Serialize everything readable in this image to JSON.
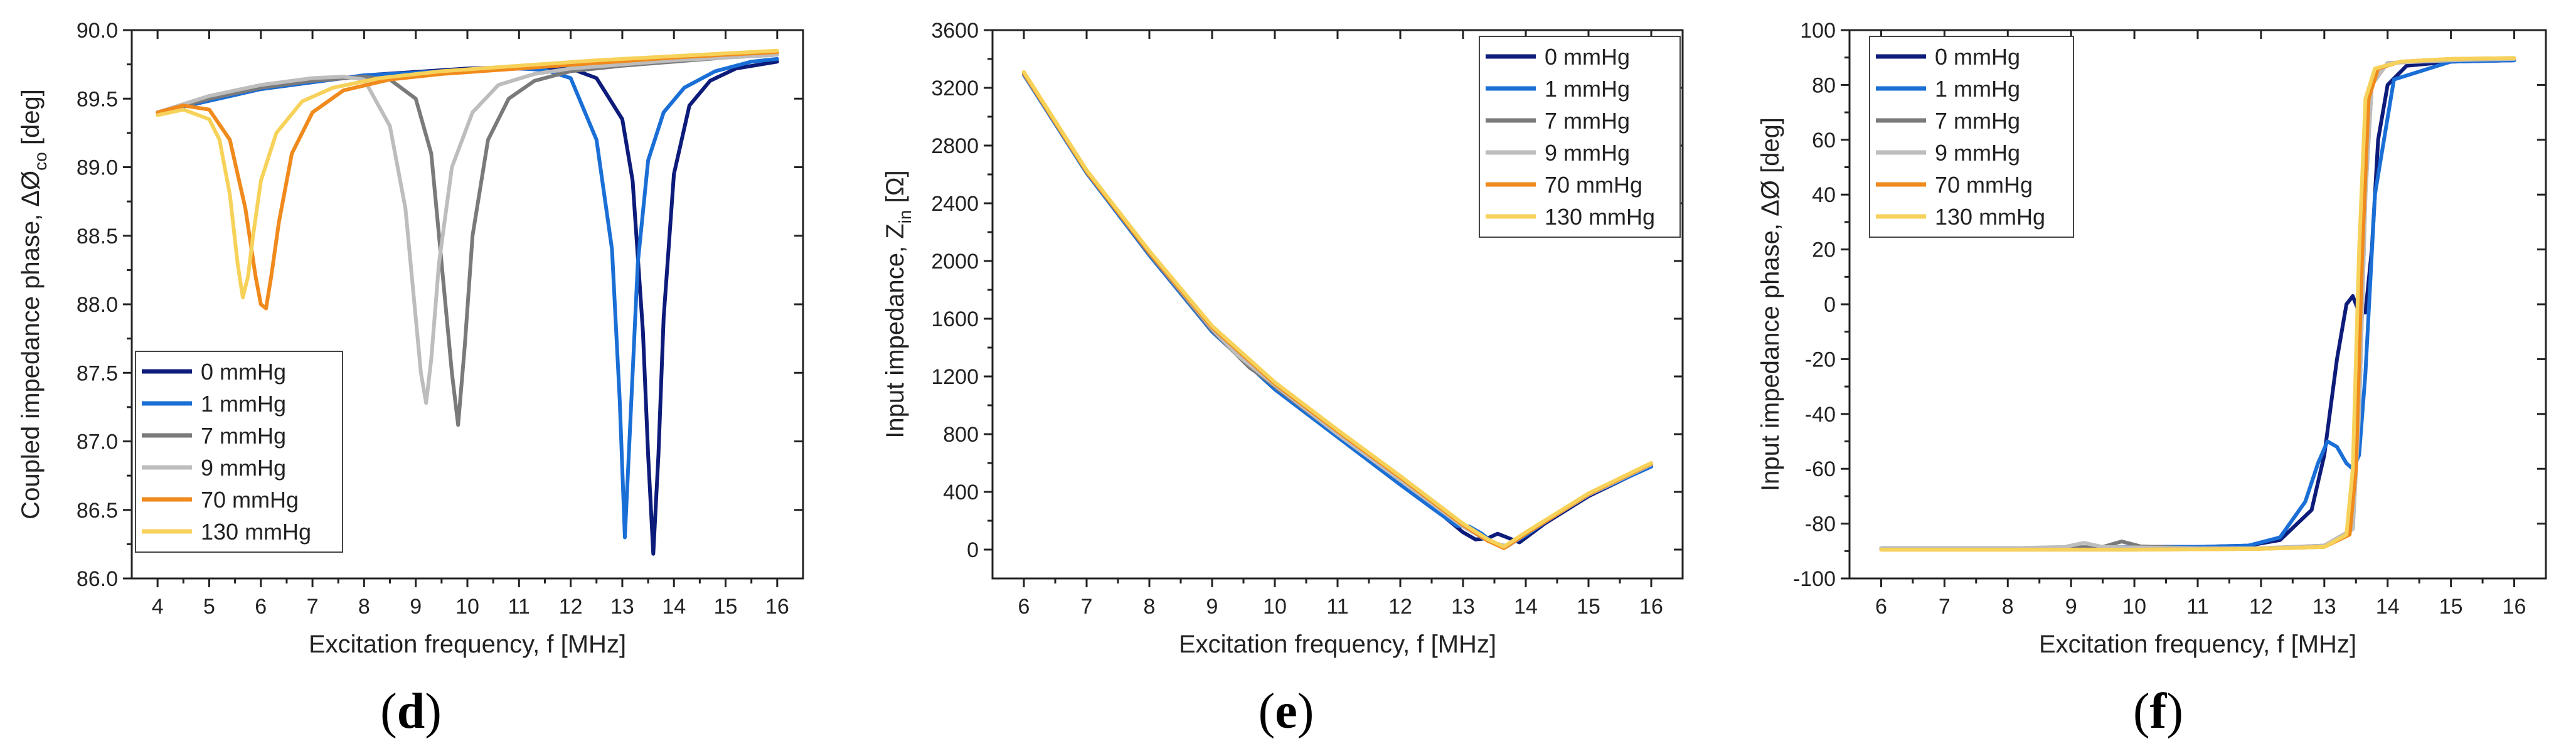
{
  "chart_data": [
    {
      "id": "d",
      "type": "line",
      "panel_label": "d",
      "xlabel": "Excitation frequency, f [MHz]",
      "ylabel": "Coupled impedance phase, ΔØ",
      "ylabel_sub": "co",
      "ylabel_unit": " [deg]",
      "xlim": [
        3.5,
        16.5
      ],
      "ylim": [
        86.0,
        90.0
      ],
      "xticks": [
        4,
        5,
        6,
        7,
        8,
        9,
        10,
        11,
        12,
        13,
        14,
        15,
        16
      ],
      "yticks": [
        86.0,
        86.5,
        87.0,
        87.5,
        88.0,
        88.5,
        89.0,
        89.5,
        90.0
      ],
      "ytick_labels": [
        "86.0",
        "86.5",
        "87.0",
        "87.5",
        "88.0",
        "88.5",
        "89.0",
        "89.5",
        "90.0"
      ],
      "legend_position": "bottom-left",
      "series": [
        {
          "name": "0 mmHg",
          "color": "#0d1b7a",
          "x": [
            4,
            6,
            8,
            10,
            11,
            12,
            12.5,
            13,
            13.2,
            13.4,
            13.5,
            13.6,
            13.7,
            13.8,
            14,
            14.3,
            14.7,
            15.2,
            16
          ],
          "y": [
            89.4,
            89.57,
            89.67,
            89.72,
            89.73,
            89.72,
            89.65,
            89.35,
            88.9,
            87.8,
            86.9,
            86.18,
            86.9,
            87.9,
            88.95,
            89.45,
            89.63,
            89.72,
            89.77
          ]
        },
        {
          "name": "1 mmHg",
          "color": "#1a6fd6",
          "x": [
            4,
            6,
            8,
            10,
            11,
            11.5,
            12,
            12.5,
            12.8,
            12.95,
            13.05,
            13.15,
            13.3,
            13.5,
            13.8,
            14.2,
            14.8,
            15.5,
            16
          ],
          "y": [
            89.4,
            89.57,
            89.67,
            89.71,
            89.72,
            89.71,
            89.65,
            89.2,
            88.4,
            87.3,
            86.3,
            87.1,
            88.3,
            89.05,
            89.4,
            89.58,
            89.7,
            89.77,
            89.79
          ]
        },
        {
          "name": "7 mmHg",
          "color": "#7a7a7a",
          "x": [
            4,
            5,
            6,
            7,
            8,
            8.5,
            9,
            9.3,
            9.55,
            9.7,
            9.82,
            9.95,
            10.1,
            10.4,
            10.8,
            11.3,
            12,
            13,
            14,
            15,
            16
          ],
          "y": [
            89.4,
            89.5,
            89.58,
            89.63,
            89.66,
            89.64,
            89.5,
            89.1,
            88.1,
            87.5,
            87.12,
            87.7,
            88.5,
            89.2,
            89.5,
            89.63,
            89.7,
            89.74,
            89.77,
            89.8,
            89.82
          ]
        },
        {
          "name": "9 mmHg",
          "color": "#bdbdbd",
          "x": [
            4,
            5,
            6,
            7,
            7.6,
            8,
            8.5,
            8.8,
            9.0,
            9.1,
            9.2,
            9.3,
            9.45,
            9.7,
            10.1,
            10.6,
            11.3,
            12,
            13,
            14,
            15,
            16
          ],
          "y": [
            89.4,
            89.52,
            89.6,
            89.65,
            89.66,
            89.64,
            89.3,
            88.7,
            87.9,
            87.5,
            87.28,
            87.6,
            88.3,
            89.0,
            89.4,
            89.6,
            89.68,
            89.72,
            89.75,
            89.78,
            89.8,
            89.82
          ]
        },
        {
          "name": "70 mmHg",
          "color": "#f08a1c",
          "x": [
            4,
            4.5,
            5,
            5.4,
            5.7,
            5.9,
            6.0,
            6.1,
            6.2,
            6.35,
            6.6,
            7.0,
            7.6,
            8.5,
            9.5,
            11,
            12.5,
            14,
            15,
            16
          ],
          "y": [
            89.4,
            89.45,
            89.42,
            89.2,
            88.7,
            88.2,
            88.0,
            87.97,
            88.2,
            88.6,
            89.1,
            89.4,
            89.56,
            89.64,
            89.68,
            89.72,
            89.76,
            89.8,
            89.82,
            89.84
          ]
        },
        {
          "name": "130 mmHg",
          "color": "#f7d25a",
          "x": [
            4,
            4.5,
            5,
            5.2,
            5.4,
            5.55,
            5.65,
            5.75,
            5.85,
            6.0,
            6.3,
            6.8,
            7.4,
            8.3,
            9.5,
            11,
            12.5,
            14,
            15,
            16
          ],
          "y": [
            89.38,
            89.42,
            89.35,
            89.2,
            88.8,
            88.3,
            88.05,
            88.2,
            88.5,
            88.9,
            89.25,
            89.48,
            89.58,
            89.65,
            89.7,
            89.74,
            89.78,
            89.81,
            89.83,
            89.85
          ]
        }
      ]
    },
    {
      "id": "e",
      "type": "line",
      "panel_label": "e",
      "xlabel": "Excitation frequency, f [MHz]",
      "ylabel": "Input impedance, Z",
      "ylabel_sub": "in",
      "ylabel_unit": " [Ω]",
      "xlim": [
        5.5,
        16.5
      ],
      "ylim": [
        -200,
        3600
      ],
      "xticks": [
        6,
        7,
        8,
        9,
        10,
        11,
        12,
        13,
        14,
        15,
        16
      ],
      "yticks": [
        0,
        400,
        800,
        1200,
        1600,
        2000,
        2400,
        2800,
        3200,
        3600
      ],
      "ytick_labels": [
        "0",
        "400",
        "800",
        "1200",
        "1600",
        "2000",
        "2400",
        "2800",
        "3200",
        "3600"
      ],
      "legend_position": "top-right",
      "series": [
        {
          "name": "0 mmHg",
          "color": "#0d1b7a",
          "x": [
            6,
            7,
            8,
            9,
            10,
            11,
            12,
            12.5,
            13,
            13.2,
            13.4,
            13.55,
            13.7,
            13.9,
            14.3,
            15,
            16
          ],
          "y": [
            3300,
            2620,
            2050,
            1520,
            1120,
            790,
            460,
            300,
            120,
            70,
            80,
            110,
            85,
            50,
            180,
            370,
            580
          ]
        },
        {
          "name": "1 mmHg",
          "color": "#1a6fd6",
          "x": [
            6,
            7,
            8,
            9,
            10,
            11,
            12,
            12.5,
            12.9,
            13.1,
            13.3,
            13.5,
            13.7,
            14,
            14.5,
            15,
            16
          ],
          "y": [
            3290,
            2610,
            2040,
            1510,
            1110,
            780,
            450,
            290,
            165,
            160,
            110,
            40,
            25,
            100,
            250,
            380,
            575
          ]
        },
        {
          "name": "7 mmHg",
          "color": "#7a7a7a",
          "x": [
            6,
            7,
            8,
            9,
            9.6,
            9.8,
            10,
            11,
            12,
            13,
            13.4,
            13.7,
            14,
            15,
            16
          ],
          "y": [
            3300,
            2620,
            2050,
            1520,
            1260,
            1200,
            1130,
            800,
            480,
            160,
            60,
            20,
            110,
            380,
            590
          ]
        },
        {
          "name": "9 mmHg",
          "color": "#bdbdbd",
          "x": [
            6,
            7,
            8,
            9,
            9.2,
            9.4,
            10,
            11,
            12,
            13,
            13.4,
            13.7,
            14,
            15,
            16
          ],
          "y": [
            3300,
            2620,
            2060,
            1530,
            1440,
            1350,
            1140,
            800,
            480,
            160,
            60,
            20,
            110,
            380,
            590
          ]
        },
        {
          "name": "70 mmHg",
          "color": "#f08a1c",
          "x": [
            6,
            7,
            8,
            9,
            10,
            11,
            12,
            13,
            13.4,
            13.65,
            14,
            15,
            16
          ],
          "y": [
            3300,
            2620,
            2060,
            1540,
            1150,
            820,
            500,
            170,
            60,
            10,
            110,
            385,
            595
          ]
        },
        {
          "name": "130 mmHg",
          "color": "#f7d25a",
          "x": [
            6,
            7,
            8,
            9,
            10,
            11,
            12,
            13,
            13.4,
            13.65,
            14,
            15,
            16
          ],
          "y": [
            3310,
            2630,
            2070,
            1550,
            1160,
            830,
            510,
            180,
            70,
            20,
            120,
            390,
            600
          ]
        }
      ]
    },
    {
      "id": "f",
      "type": "line",
      "panel_label": "f",
      "xlabel": "Excitation frequency, f [MHz]",
      "ylabel": "Input impedance phase, ΔØ [deg]",
      "ylabel_sub": "",
      "ylabel_unit": "",
      "xlim": [
        5.5,
        16.5
      ],
      "ylim": [
        -100,
        100
      ],
      "xticks": [
        6,
        7,
        8,
        9,
        10,
        11,
        12,
        13,
        14,
        15,
        16
      ],
      "yticks": [
        -100,
        -80,
        -60,
        -40,
        -20,
        0,
        20,
        40,
        60,
        80,
        100
      ],
      "ytick_labels": [
        "-100",
        "-80",
        "-60",
        "-40",
        "-20",
        "0",
        "20",
        "40",
        "60",
        "80",
        "100"
      ],
      "legend_position": "top-left",
      "series": [
        {
          "name": "0 mmHg",
          "color": "#0d1b7a",
          "x": [
            6,
            8,
            10,
            11,
            11.8,
            12.3,
            12.8,
            13.0,
            13.2,
            13.35,
            13.45,
            13.55,
            13.65,
            13.75,
            13.85,
            14.0,
            14.3,
            15,
            16
          ],
          "y": [
            -89,
            -89,
            -88.5,
            -88.5,
            -88,
            -86,
            -75,
            -55,
            -20,
            0,
            3,
            -3,
            -3,
            20,
            60,
            80,
            87,
            88.5,
            89
          ]
        },
        {
          "name": "1 mmHg",
          "color": "#1a6fd6",
          "x": [
            6,
            8,
            10,
            11,
            11.8,
            12.3,
            12.7,
            12.9,
            13.05,
            13.2,
            13.35,
            13.45,
            13.55,
            13.65,
            13.8,
            14.1,
            15,
            16
          ],
          "y": [
            -89,
            -89,
            -88.5,
            -88.5,
            -88,
            -85,
            -72,
            -58,
            -50,
            -52,
            -58,
            -60,
            -55,
            -25,
            40,
            82,
            88.5,
            89
          ]
        },
        {
          "name": "7 mmHg",
          "color": "#7a7a7a",
          "x": [
            6,
            8,
            9.5,
            9.8,
            10.1,
            11,
            12,
            13,
            13.45,
            13.55,
            13.65,
            13.75,
            14,
            15,
            16
          ],
          "y": [
            -89,
            -89,
            -88.5,
            -86.5,
            -88.3,
            -89,
            -89,
            -88,
            -82,
            -40,
            40,
            80,
            88,
            89,
            89.5
          ]
        },
        {
          "name": "9 mmHg",
          "color": "#bdbdbd",
          "x": [
            6,
            8,
            8.9,
            9.2,
            9.5,
            11,
            12,
            13,
            13.45,
            13.55,
            13.65,
            13.75,
            14,
            15,
            16
          ],
          "y": [
            -89,
            -89,
            -88.5,
            -87,
            -88.5,
            -89,
            -89,
            -88,
            -82,
            -40,
            40,
            80,
            88,
            89,
            89.5
          ]
        },
        {
          "name": "70 mmHg",
          "color": "#f08a1c",
          "x": [
            6,
            8,
            10,
            12,
            13,
            13.4,
            13.5,
            13.6,
            13.7,
            13.85,
            14.2,
            15,
            16
          ],
          "y": [
            -89.5,
            -89.5,
            -89.5,
            -89.2,
            -88.5,
            -84,
            -60,
            20,
            75,
            86,
            88.5,
            89.5,
            89.8
          ]
        },
        {
          "name": "130 mmHg",
          "color": "#f7d25a",
          "x": [
            6,
            8,
            10,
            12,
            13,
            13.35,
            13.45,
            13.55,
            13.65,
            13.8,
            14.2,
            15,
            16
          ],
          "y": [
            -89.5,
            -89.5,
            -89.5,
            -89.2,
            -88.5,
            -84,
            -60,
            20,
            75,
            86,
            88.5,
            89.5,
            89.8
          ]
        }
      ]
    }
  ]
}
